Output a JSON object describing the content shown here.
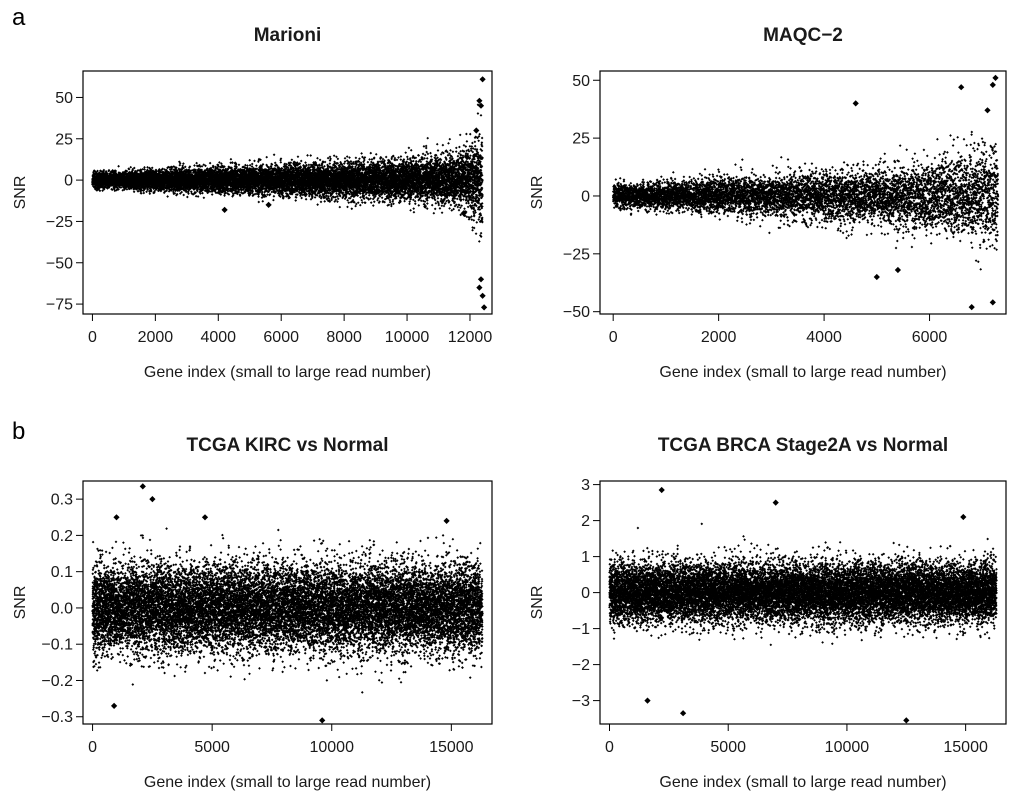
{
  "panels": {
    "a": "a",
    "b": "b"
  },
  "chart_data": [
    {
      "type": "scatter",
      "title": "Marioni",
      "xlabel": "Gene index (small to large read number)",
      "ylabel": "SNR",
      "xlim": [
        -300,
        12700
      ],
      "ylim": [
        -81,
        66
      ],
      "xticks": [
        0,
        2000,
        4000,
        6000,
        8000,
        10000,
        12000
      ],
      "xtick_labels": [
        "0",
        "2000",
        "4000",
        "6000",
        "8000",
        "10000",
        "12000"
      ],
      "yticks": [
        -75,
        -50,
        -25,
        0,
        25,
        50
      ],
      "ytick_labels": [
        "−75",
        "−50",
        "−25",
        "0",
        "25",
        "50"
      ],
      "grid": false,
      "n_points": 12400,
      "spread_by_x": [
        [
          0,
          3
        ],
        [
          2000,
          4
        ],
        [
          4000,
          5
        ],
        [
          6000,
          6
        ],
        [
          8000,
          7
        ],
        [
          10000,
          8
        ],
        [
          11500,
          10
        ],
        [
          12000,
          14
        ],
        [
          12400,
          22
        ]
      ],
      "notable_points": [
        [
          12400,
          61
        ],
        [
          12300,
          48
        ],
        [
          12350,
          45
        ],
        [
          12200,
          30
        ],
        [
          12300,
          -65
        ],
        [
          12400,
          -70
        ],
        [
          12450,
          -77
        ],
        [
          12350,
          -60
        ],
        [
          4200,
          -18
        ],
        [
          5600,
          -15
        ],
        [
          11800,
          -20
        ]
      ]
    },
    {
      "type": "scatter",
      "title": "MAQC−2",
      "xlabel": "Gene index (small to large read number)",
      "ylabel": "SNR",
      "xlim": [
        -250,
        7450
      ],
      "ylim": [
        -51,
        54
      ],
      "xticks": [
        0,
        2000,
        4000,
        6000
      ],
      "xtick_labels": [
        "0",
        "2000",
        "4000",
        "6000"
      ],
      "yticks": [
        -50,
        -25,
        0,
        25,
        50
      ],
      "ytick_labels": [
        "−50",
        "−25",
        "0",
        "25",
        "50"
      ],
      "grid": false,
      "n_points": 7300,
      "spread_by_x": [
        [
          0,
          3
        ],
        [
          1000,
          4
        ],
        [
          2000,
          5
        ],
        [
          3000,
          6
        ],
        [
          4000,
          7
        ],
        [
          5000,
          8
        ],
        [
          6000,
          10
        ],
        [
          7000,
          13
        ],
        [
          7300,
          16
        ]
      ],
      "notable_points": [
        [
          7250,
          51
        ],
        [
          7200,
          48
        ],
        [
          6600,
          47
        ],
        [
          5000,
          -35
        ],
        [
          6800,
          -48
        ],
        [
          7200,
          -46
        ],
        [
          4600,
          40
        ],
        [
          5400,
          -32
        ],
        [
          7100,
          37
        ]
      ]
    },
    {
      "type": "scatter",
      "title": "TCGA KIRC vs Normal",
      "xlabel": "Gene index (small to large read number)",
      "ylabel": "SNR",
      "xlim": [
        -400,
        16700
      ],
      "ylim": [
        -0.32,
        0.35
      ],
      "xticks": [
        0,
        5000,
        10000,
        15000
      ],
      "xtick_labels": [
        "0",
        "5000",
        "10000",
        "15000"
      ],
      "yticks": [
        -0.3,
        -0.2,
        -0.1,
        0.0,
        0.1,
        0.2,
        0.3
      ],
      "ytick_labels": [
        "−0.3",
        "−0.2",
        "−0.1",
        "0.0",
        "0.1",
        "0.2",
        "0.3"
      ],
      "grid": false,
      "n_points": 16300,
      "spread_by_x": [
        [
          0,
          0.08
        ],
        [
          16300,
          0.08
        ]
      ],
      "notable_points": [
        [
          2100,
          0.335
        ],
        [
          2500,
          0.3
        ],
        [
          9600,
          -0.31
        ],
        [
          1000,
          0.25
        ],
        [
          14800,
          0.24
        ],
        [
          900,
          -0.27
        ],
        [
          4700,
          0.25
        ]
      ]
    },
    {
      "type": "scatter",
      "title": "TCGA BRCA Stage2A vs Normal",
      "xlabel": "Gene index (small to large read number)",
      "ylabel": "SNR",
      "xlim": [
        -400,
        16700
      ],
      "ylim": [
        -3.65,
        3.1
      ],
      "xticks": [
        0,
        5000,
        10000,
        15000
      ],
      "xtick_labels": [
        "0",
        "5000",
        "10000",
        "15000"
      ],
      "yticks": [
        -3,
        -2,
        -1,
        0,
        1,
        2,
        3
      ],
      "ytick_labels": [
        "−3",
        "−2",
        "−1",
        "0",
        "1",
        "2",
        "3"
      ],
      "grid": false,
      "n_points": 16300,
      "spread_by_x": [
        [
          0,
          0.55
        ],
        [
          16300,
          0.55
        ]
      ],
      "notable_points": [
        [
          2200,
          2.85
        ],
        [
          7000,
          2.5
        ],
        [
          12500,
          -3.55
        ],
        [
          3100,
          -3.35
        ],
        [
          1600,
          -3.0
        ],
        [
          14900,
          2.1
        ]
      ]
    }
  ]
}
